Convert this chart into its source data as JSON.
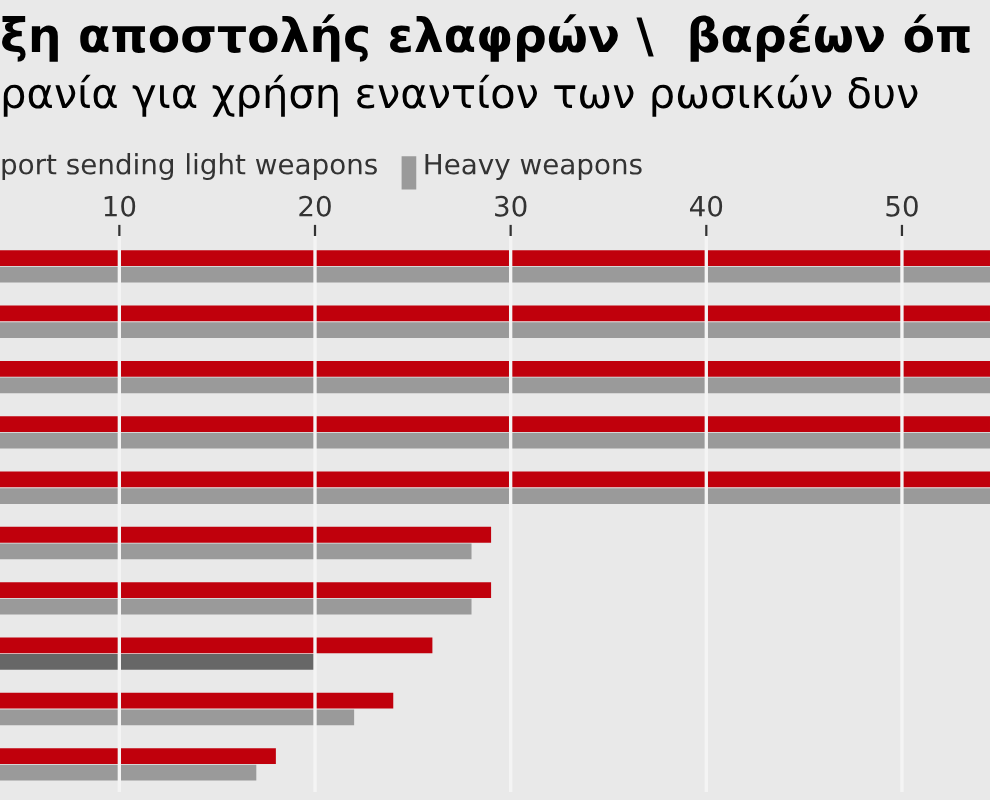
{
  "chart_data": {
    "type": "bar",
    "orientation": "horizontal",
    "title": "ξη αποστολής ελαφρών \\  βαρέων όπ",
    "subtitle": "ρανία για χρήση εναντίον των ρωσικών δυν",
    "categories": [
      null,
      null,
      null,
      null,
      null,
      null,
      null,
      null,
      null,
      null
    ],
    "series": [
      {
        "name": "port sending light weapons",
        "color": "#c0000c",
        "values": [
          54.5,
          54.5,
          54.5,
          54.5,
          54.5,
          29,
          29,
          26,
          24,
          18
        ]
      },
      {
        "name": "Heavy weapons",
        "color": "#9a9a9a",
        "colors": [
          "#9a9a9a",
          "#9a9a9a",
          "#9a9a9a",
          "#9a9a9a",
          "#9a9a9a",
          "#9a9a9a",
          "#9a9a9a",
          "#676767",
          "#9a9a9a",
          "#9a9a9a"
        ],
        "values": [
          54.5,
          54.5,
          54.5,
          54.5,
          54.5,
          28,
          28,
          20,
          22,
          17
        ]
      }
    ],
    "xlim": [
      3.9,
      54.5
    ],
    "xticks": [
      10,
      20,
      30,
      40,
      50
    ],
    "grid": "x",
    "legend": "top left"
  }
}
